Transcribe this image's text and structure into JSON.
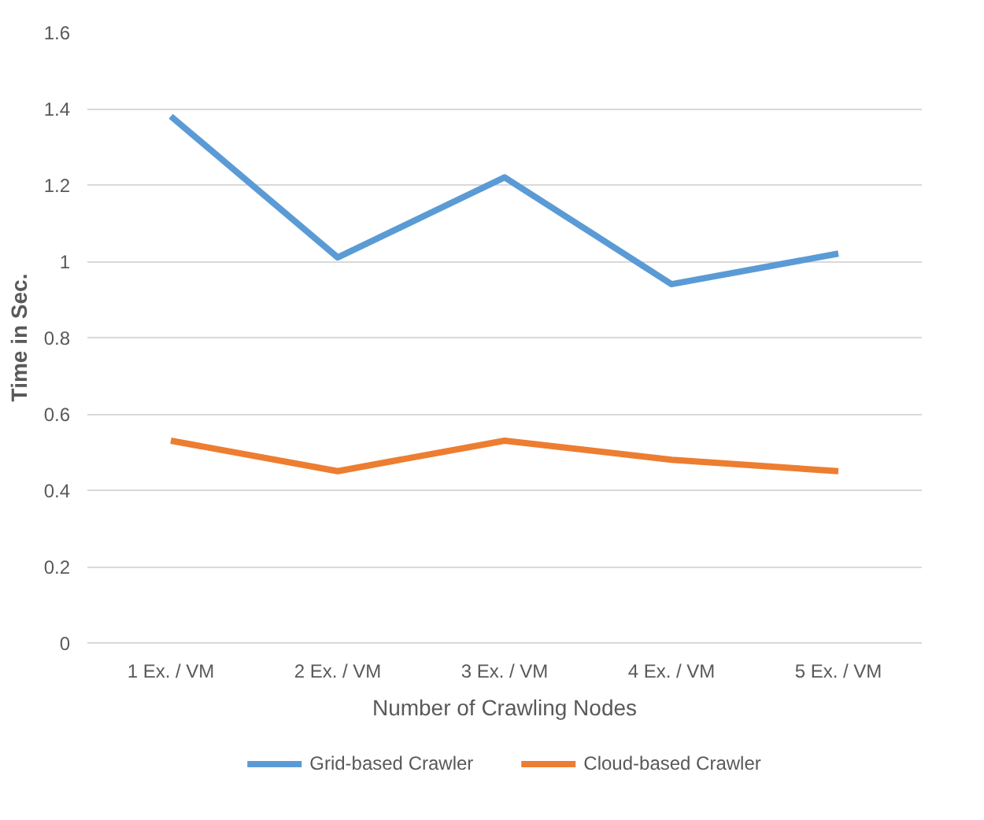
{
  "chart_data": {
    "type": "line",
    "xlabel": "Number of Crawling Nodes",
    "ylabel": "Time in Sec.",
    "categories": [
      "1 Ex. / VM",
      "2 Ex. / VM",
      "3 Ex. / VM",
      "4 Ex. / VM",
      "5 Ex. / VM"
    ],
    "series": [
      {
        "name": "Grid-based Crawler",
        "color": "#5b9bd5",
        "values": [
          1.38,
          1.01,
          1.22,
          0.94,
          1.02
        ]
      },
      {
        "name": "Cloud-based Crawler",
        "color": "#ed7d31",
        "values": [
          0.53,
          0.45,
          0.53,
          0.48,
          0.45
        ]
      }
    ],
    "ylim": [
      0,
      1.6
    ],
    "yticks": [
      0,
      0.2,
      0.4,
      0.6,
      0.8,
      1,
      1.2,
      1.4,
      1.6
    ],
    "grid": "y",
    "legend": "bottom",
    "marker": "none",
    "line_style": "solid"
  }
}
